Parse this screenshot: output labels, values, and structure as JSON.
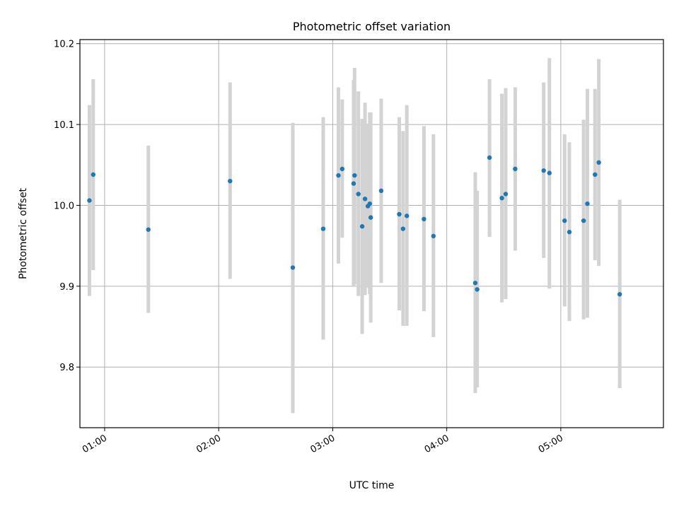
{
  "chart_data": {
    "type": "scatter",
    "title": "Photometric offset variation",
    "xlabel": "UTC time",
    "ylabel": "Photometric offset",
    "x_unit": "UTC time (HH:MM)",
    "xlim": [
      "00:47:00",
      "05:54:00"
    ],
    "ylim": [
      9.725,
      10.205
    ],
    "x_ticks": [
      "01:00",
      "02:00",
      "03:00",
      "04:00",
      "05:00"
    ],
    "y_ticks": [
      9.8,
      9.9,
      10.0,
      10.1,
      10.2
    ],
    "y_tick_labels": [
      "9.8",
      "9.9",
      "10.0",
      "10.1",
      "10.2"
    ],
    "grid": true,
    "x_tick_rotation": "30 degrees",
    "marker_color": "#1f77b4",
    "errorbar_color": "#d3d3d3",
    "series": [
      {
        "points": [
          {
            "x": "00:52:00",
            "y": 10.006,
            "ylo": 9.888,
            "yhi": 10.124
          },
          {
            "x": "00:54:00",
            "y": 10.038,
            "ylo": 9.92,
            "yhi": 10.156
          },
          {
            "x": "01:23:00",
            "y": 9.97,
            "ylo": 9.867,
            "yhi": 10.074
          },
          {
            "x": "02:06:00",
            "y": 10.03,
            "ylo": 9.909,
            "yhi": 10.152
          },
          {
            "x": "02:39:00",
            "y": 9.923,
            "ylo": 9.743,
            "yhi": 10.102
          },
          {
            "x": "02:55:00",
            "y": 9.971,
            "ylo": 9.834,
            "yhi": 10.109
          },
          {
            "x": "03:03:00",
            "y": 10.037,
            "ylo": 9.928,
            "yhi": 10.146
          },
          {
            "x": "03:05:00",
            "y": 10.045,
            "ylo": 9.96,
            "yhi": 10.131
          },
          {
            "x": "03:11:30",
            "y": 10.037,
            "ylo": 9.902,
            "yhi": 10.17
          },
          {
            "x": "03:11:00",
            "y": 10.027,
            "ylo": 9.9,
            "yhi": 10.155
          },
          {
            "x": "03:13:30",
            "y": 10.014,
            "ylo": 9.888,
            "yhi": 10.141
          },
          {
            "x": "03:15:30",
            "y": 9.974,
            "ylo": 9.841,
            "yhi": 10.107
          },
          {
            "x": "03:17:00",
            "y": 10.008,
            "ylo": 9.889,
            "yhi": 10.127
          },
          {
            "x": "03:18:30",
            "y": 9.999,
            "ylo": 9.898,
            "yhi": 10.101
          },
          {
            "x": "03:19:30",
            "y": 10.002,
            "ylo": 9.89,
            "yhi": 10.115
          },
          {
            "x": "03:20:00",
            "y": 9.985,
            "ylo": 9.855,
            "yhi": 10.115
          },
          {
            "x": "03:25:30",
            "y": 10.018,
            "ylo": 9.904,
            "yhi": 10.132
          },
          {
            "x": "03:35:00",
            "y": 9.989,
            "ylo": 9.87,
            "yhi": 10.109
          },
          {
            "x": "03:37:00",
            "y": 9.971,
            "ylo": 9.851,
            "yhi": 10.092
          },
          {
            "x": "03:39:00",
            "y": 9.987,
            "ylo": 9.851,
            "yhi": 10.124
          },
          {
            "x": "03:48:00",
            "y": 9.983,
            "ylo": 9.869,
            "yhi": 10.098
          },
          {
            "x": "03:53:00",
            "y": 9.962,
            "ylo": 9.837,
            "yhi": 10.088
          },
          {
            "x": "04:15:00",
            "y": 9.904,
            "ylo": 9.768,
            "yhi": 10.041
          },
          {
            "x": "04:16:00",
            "y": 9.896,
            "ylo": 9.775,
            "yhi": 10.018
          },
          {
            "x": "04:22:30",
            "y": 10.059,
            "ylo": 9.961,
            "yhi": 10.156
          },
          {
            "x": "04:29:00",
            "y": 10.009,
            "ylo": 9.88,
            "yhi": 10.138
          },
          {
            "x": "04:31:00",
            "y": 10.014,
            "ylo": 9.884,
            "yhi": 10.145
          },
          {
            "x": "04:36:00",
            "y": 10.045,
            "ylo": 9.944,
            "yhi": 10.146
          },
          {
            "x": "04:51:00",
            "y": 10.043,
            "ylo": 9.935,
            "yhi": 10.152
          },
          {
            "x": "04:54:00",
            "y": 10.04,
            "ylo": 9.897,
            "yhi": 10.182
          },
          {
            "x": "05:02:00",
            "y": 9.981,
            "ylo": 9.875,
            "yhi": 10.088
          },
          {
            "x": "05:04:30",
            "y": 9.967,
            "ylo": 9.857,
            "yhi": 10.078
          },
          {
            "x": "05:12:00",
            "y": 9.981,
            "ylo": 9.859,
            "yhi": 10.106
          },
          {
            "x": "05:14:00",
            "y": 10.002,
            "ylo": 9.861,
            "yhi": 10.144
          },
          {
            "x": "05:18:00",
            "y": 10.038,
            "ylo": 9.932,
            "yhi": 10.144
          },
          {
            "x": "05:20:00",
            "y": 10.053,
            "ylo": 9.925,
            "yhi": 10.181
          },
          {
            "x": "05:31:00",
            "y": 9.89,
            "ylo": 9.774,
            "yhi": 10.007
          }
        ]
      }
    ]
  }
}
